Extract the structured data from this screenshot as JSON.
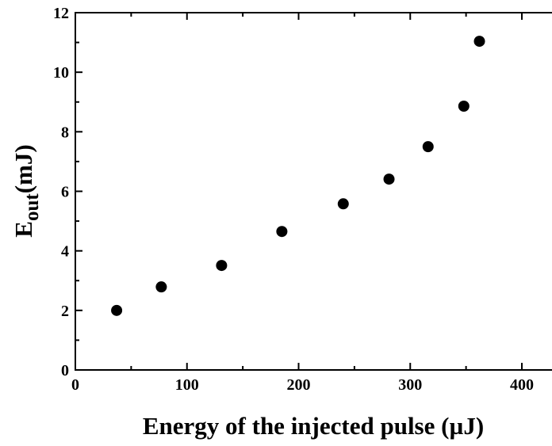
{
  "chart_data": {
    "type": "scatter",
    "xlabel": "Energy of the injected pulse  (µJ)",
    "ylabel": {
      "main": "E",
      "sub": "out",
      "unit": "(mJ)"
    },
    "series": [
      {
        "color": "#000000",
        "x": [
          37,
          77,
          131,
          185,
          240,
          281,
          316,
          348,
          362
        ],
        "values": [
          2.0,
          2.79,
          3.51,
          4.65,
          5.58,
          6.41,
          7.5,
          8.86,
          11.04
        ]
      }
    ],
    "xlim": [
      0,
      427
    ],
    "xticks": [
      0,
      100,
      200,
      300,
      400
    ],
    "xminorticks": [
      50,
      150,
      250,
      350
    ],
    "ylim": [
      0,
      12
    ],
    "yticks": [
      0,
      2,
      4,
      6,
      8,
      10,
      12
    ],
    "yminorticks": [
      1,
      3,
      5,
      7,
      9,
      11
    ]
  }
}
